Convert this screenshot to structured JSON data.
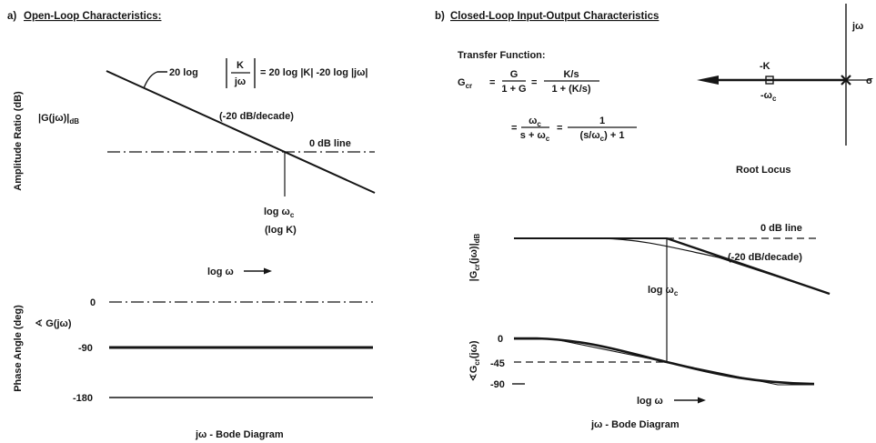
{
  "panel_a": {
    "label": "a)",
    "title": "Open-Loop Characteristics:",
    "amplitude_axis_label": "Amplitude Ratio (dB)",
    "magnitude_symbol": "|G(jω)|",
    "magnitude_subscript": "dB",
    "equation": {
      "prefix": "20 log",
      "numerator": "K",
      "denominator": "jω",
      "rest": "= 20 log |K| -20 log |jω|"
    },
    "slope_label": "(-20 dB/decade)",
    "zero_db_label": "0 dB line",
    "crossover_label": "log ω",
    "crossover_subscript": "c",
    "crossover_gain": "(log K)",
    "frequency_axis_label": "log ω",
    "phase_axis_label": "Phase Angle (deg)",
    "phase_symbol": "∢ G(jω)",
    "phase_ticks": [
      "0",
      "-90",
      "-180"
    ],
    "caption": "jω - Bode Diagram"
  },
  "panel_b": {
    "label": "b)",
    "title": "Closed-Loop Input-Output Characteristics",
    "transfer_function": {
      "heading": "Transfer Function:",
      "lhs": "G",
      "lhs_sub": "cr",
      "eq1": "=",
      "f1_num": "G",
      "f1_den": "1 + G",
      "eq2": "=",
      "f2_num": "K/s",
      "f2_den": "1 + (K/s)",
      "eq3": "=",
      "f3_num": "ω",
      "f3_num_sub": "c",
      "f3_den": "s + ω",
      "f3_den_sub": "c",
      "eq4": "=",
      "f4_num": "1",
      "f4_den": "(s/ω",
      "f4_den_sub": "c",
      "f4_den_tail": ") + 1"
    },
    "root_locus": {
      "imag_axis_label": "jω",
      "real_axis_label": "σ",
      "zero_label": "-K",
      "pole_label": "-ω",
      "pole_subscript": "c",
      "caption": "Root Locus"
    },
    "bode": {
      "magnitude_main": "|G",
      "magnitude_sub": "cr",
      "magnitude_tail": "(jω)|",
      "magnitude_unit": "dB",
      "zero_db_label": "0 dB line",
      "slope_label": "(-20 dB/decade)",
      "crossover_label": "log ω",
      "crossover_subscript": "c",
      "phase_main": "∢G",
      "phase_sub": "cr",
      "phase_tail": "(jω)",
      "phase_ticks": [
        "0",
        "-45",
        "-90"
      ],
      "frequency_axis_label": "log ω",
      "caption": "jω - Bode Diagram"
    }
  }
}
